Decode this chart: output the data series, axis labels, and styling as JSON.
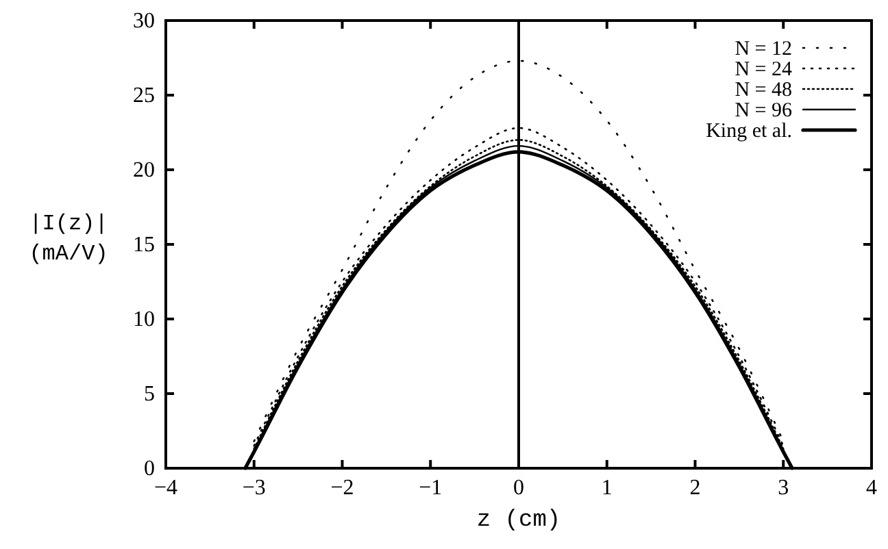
{
  "chart_data": {
    "type": "line",
    "xlabel": "z (cm)",
    "ylabel": "|I(z)|\n(mA/V)",
    "x": [
      -3.1,
      -3,
      -2.5,
      -2,
      -1.5,
      -1,
      -0.5,
      0,
      0.5,
      1,
      1.5,
      2,
      2.5,
      3,
      3.1
    ],
    "xlim": [
      -4,
      4
    ],
    "xticks": [
      -4,
      -3,
      -2,
      -1,
      0,
      1,
      2,
      3,
      4
    ],
    "ylim": [
      0,
      30
    ],
    "yticks": [
      0,
      5,
      10,
      15,
      20,
      25,
      30
    ],
    "legend": "top right",
    "grid": false,
    "ref_lines": [
      {
        "axis": "x",
        "value": 0,
        "color": "#000000"
      }
    ],
    "series": [
      {
        "name": "N = 12",
        "color": "#000000",
        "line_style": "dotted",
        "x": [
          -3,
          -2.5,
          -2,
          -1.5,
          -1,
          -0.5,
          0,
          0.5,
          1,
          1.5,
          2,
          2.5,
          3
        ],
        "values": [
          1.8,
          8,
          13.3,
          18.8,
          23.3,
          26.2,
          27.3,
          26.2,
          23.3,
          18.8,
          13.3,
          8,
          1.8
        ]
      },
      {
        "name": "N = 24",
        "color": "#000000",
        "line_style": "dotted",
        "x": [
          -3,
          -2.5,
          -2,
          -1.5,
          -1,
          -0.5,
          0,
          0.5,
          1,
          1.5,
          2,
          2.5,
          3
        ],
        "values": [
          1.5,
          7.5,
          12.5,
          16.3,
          19.3,
          21.5,
          22.8,
          21.5,
          19.3,
          16.3,
          12.5,
          7.5,
          1.5
        ]
      },
      {
        "name": "N = 48",
        "color": "#000000",
        "line_style": "dotted",
        "x": [
          -3,
          -2.5,
          -2,
          -1.5,
          -1,
          -0.5,
          0,
          0.5,
          1,
          1.5,
          2,
          2.5,
          3
        ],
        "values": [
          1.3,
          7.2,
          12.2,
          16,
          18.9,
          20.9,
          22,
          20.9,
          18.9,
          16,
          12.2,
          7.2,
          1.3
        ]
      },
      {
        "name": "N = 96",
        "color": "#000000",
        "line_style": "solid",
        "x": [
          -3,
          -2.5,
          -2,
          -1.5,
          -1,
          -0.5,
          0,
          0.5,
          1,
          1.5,
          2,
          2.5,
          3
        ],
        "values": [
          1.2,
          7,
          12,
          15.9,
          18.8,
          20.6,
          21.6,
          20.6,
          18.8,
          15.9,
          12,
          7,
          1.2
        ]
      },
      {
        "name": "King et al.",
        "color": "#000000",
        "line_style": "solid",
        "values": [
          0,
          1.1,
          6.8,
          11.8,
          15.7,
          18.6,
          20.3,
          21.2,
          20.3,
          18.6,
          15.7,
          11.8,
          6.8,
          1.1,
          0
        ]
      }
    ]
  }
}
